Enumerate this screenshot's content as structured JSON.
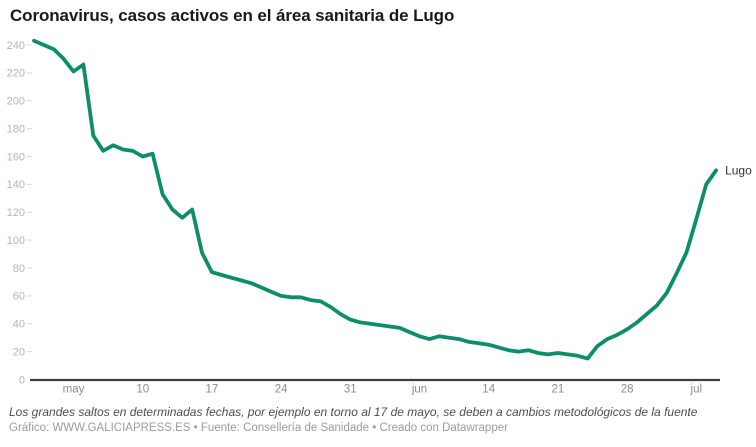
{
  "title": "Coronavirus, casos activos en el área sanitaria de Lugo",
  "footnote": "Los grandes saltos en determinadas fechas, por ejemplo en torno al 17 de mayo, se deben a cambios metodológicos de la fuente",
  "byline": "Gráfico: WWW.GALICIAPRESS.ES • Fuente: Consellería de Sanidade • Creado con Datawrapper",
  "colors": {
    "line": "#0d8e6a",
    "title": "#1a1a1a",
    "y_label": "#b5b5b5",
    "x_label": "#8c8c8c",
    "tick_dash": "#d9d9d9",
    "baseline": "#404040",
    "note": "#4d4d4d",
    "byline": "#9b9b9b",
    "series_label": "#333333",
    "background": "#ffffff"
  },
  "chart_data": {
    "type": "line",
    "title": "Coronavirus, casos activos en el área sanitaria de Lugo",
    "xlabel": "",
    "ylabel": "",
    "ylim": [
      0,
      240
    ],
    "y_ticks": [
      0,
      20,
      40,
      60,
      80,
      100,
      120,
      140,
      160,
      180,
      200,
      220,
      240
    ],
    "grid": "y-tick-dashes-only",
    "legend": "direct-label-at-line-end",
    "x": [
      "29 abr",
      "30 abr",
      "1 may",
      "2 may",
      "3 may",
      "4 may",
      "5 may",
      "6 may",
      "7 may",
      "8 may",
      "9 may",
      "10 may",
      "11 may",
      "12 may",
      "13 may",
      "14 may",
      "15 may",
      "16 may",
      "17 may",
      "18 may",
      "19 may",
      "20 may",
      "21 may",
      "22 may",
      "23 may",
      "24 may",
      "25 may",
      "26 may",
      "27 may",
      "28 may",
      "29 may",
      "30 may",
      "31 may",
      "1 jun",
      "2 jun",
      "3 jun",
      "4 jun",
      "5 jun",
      "6 jun",
      "7 jun",
      "8 jun",
      "9 jun",
      "10 jun",
      "11 jun",
      "12 jun",
      "13 jun",
      "14 jun",
      "15 jun",
      "16 jun",
      "17 jun",
      "18 jun",
      "19 jun",
      "20 jun",
      "21 jun",
      "22 jun",
      "23 jun",
      "24 jun",
      "25 jun",
      "26 jun",
      "27 jun",
      "28 jun",
      "29 jun",
      "30 jun",
      "1 jul",
      "2 jul",
      "3 jul",
      "4 jul",
      "5 jul",
      "6 jul",
      "7 jul"
    ],
    "x_ticks": [
      {
        "label": "may",
        "date": "3 may"
      },
      {
        "label": "10",
        "date": "10 may"
      },
      {
        "label": "17",
        "date": "17 may"
      },
      {
        "label": "24",
        "date": "24 may"
      },
      {
        "label": "31",
        "date": "31 may"
      },
      {
        "label": "jun",
        "date": "7 jun"
      },
      {
        "label": "14",
        "date": "14 jun"
      },
      {
        "label": "21",
        "date": "21 jun"
      },
      {
        "label": "28",
        "date": "28 jun"
      },
      {
        "label": "jul",
        "date": "5 jul"
      }
    ],
    "series": [
      {
        "name": "Lugo",
        "values": [
          243,
          240,
          237,
          230,
          221,
          226,
          175,
          164,
          168,
          165,
          164,
          160,
          162,
          133,
          122,
          116,
          122,
          91,
          77,
          75,
          73,
          71,
          69,
          66,
          63,
          60,
          59,
          59,
          57,
          56,
          52,
          47,
          43,
          41,
          40,
          39,
          38,
          37,
          34,
          31,
          29,
          31,
          30,
          29,
          27,
          26,
          25,
          23,
          21,
          20,
          21,
          19,
          18,
          19,
          18,
          17,
          15,
          24,
          29,
          32,
          36,
          41,
          47,
          53,
          62,
          76,
          91,
          115,
          140,
          150
        ]
      }
    ]
  }
}
